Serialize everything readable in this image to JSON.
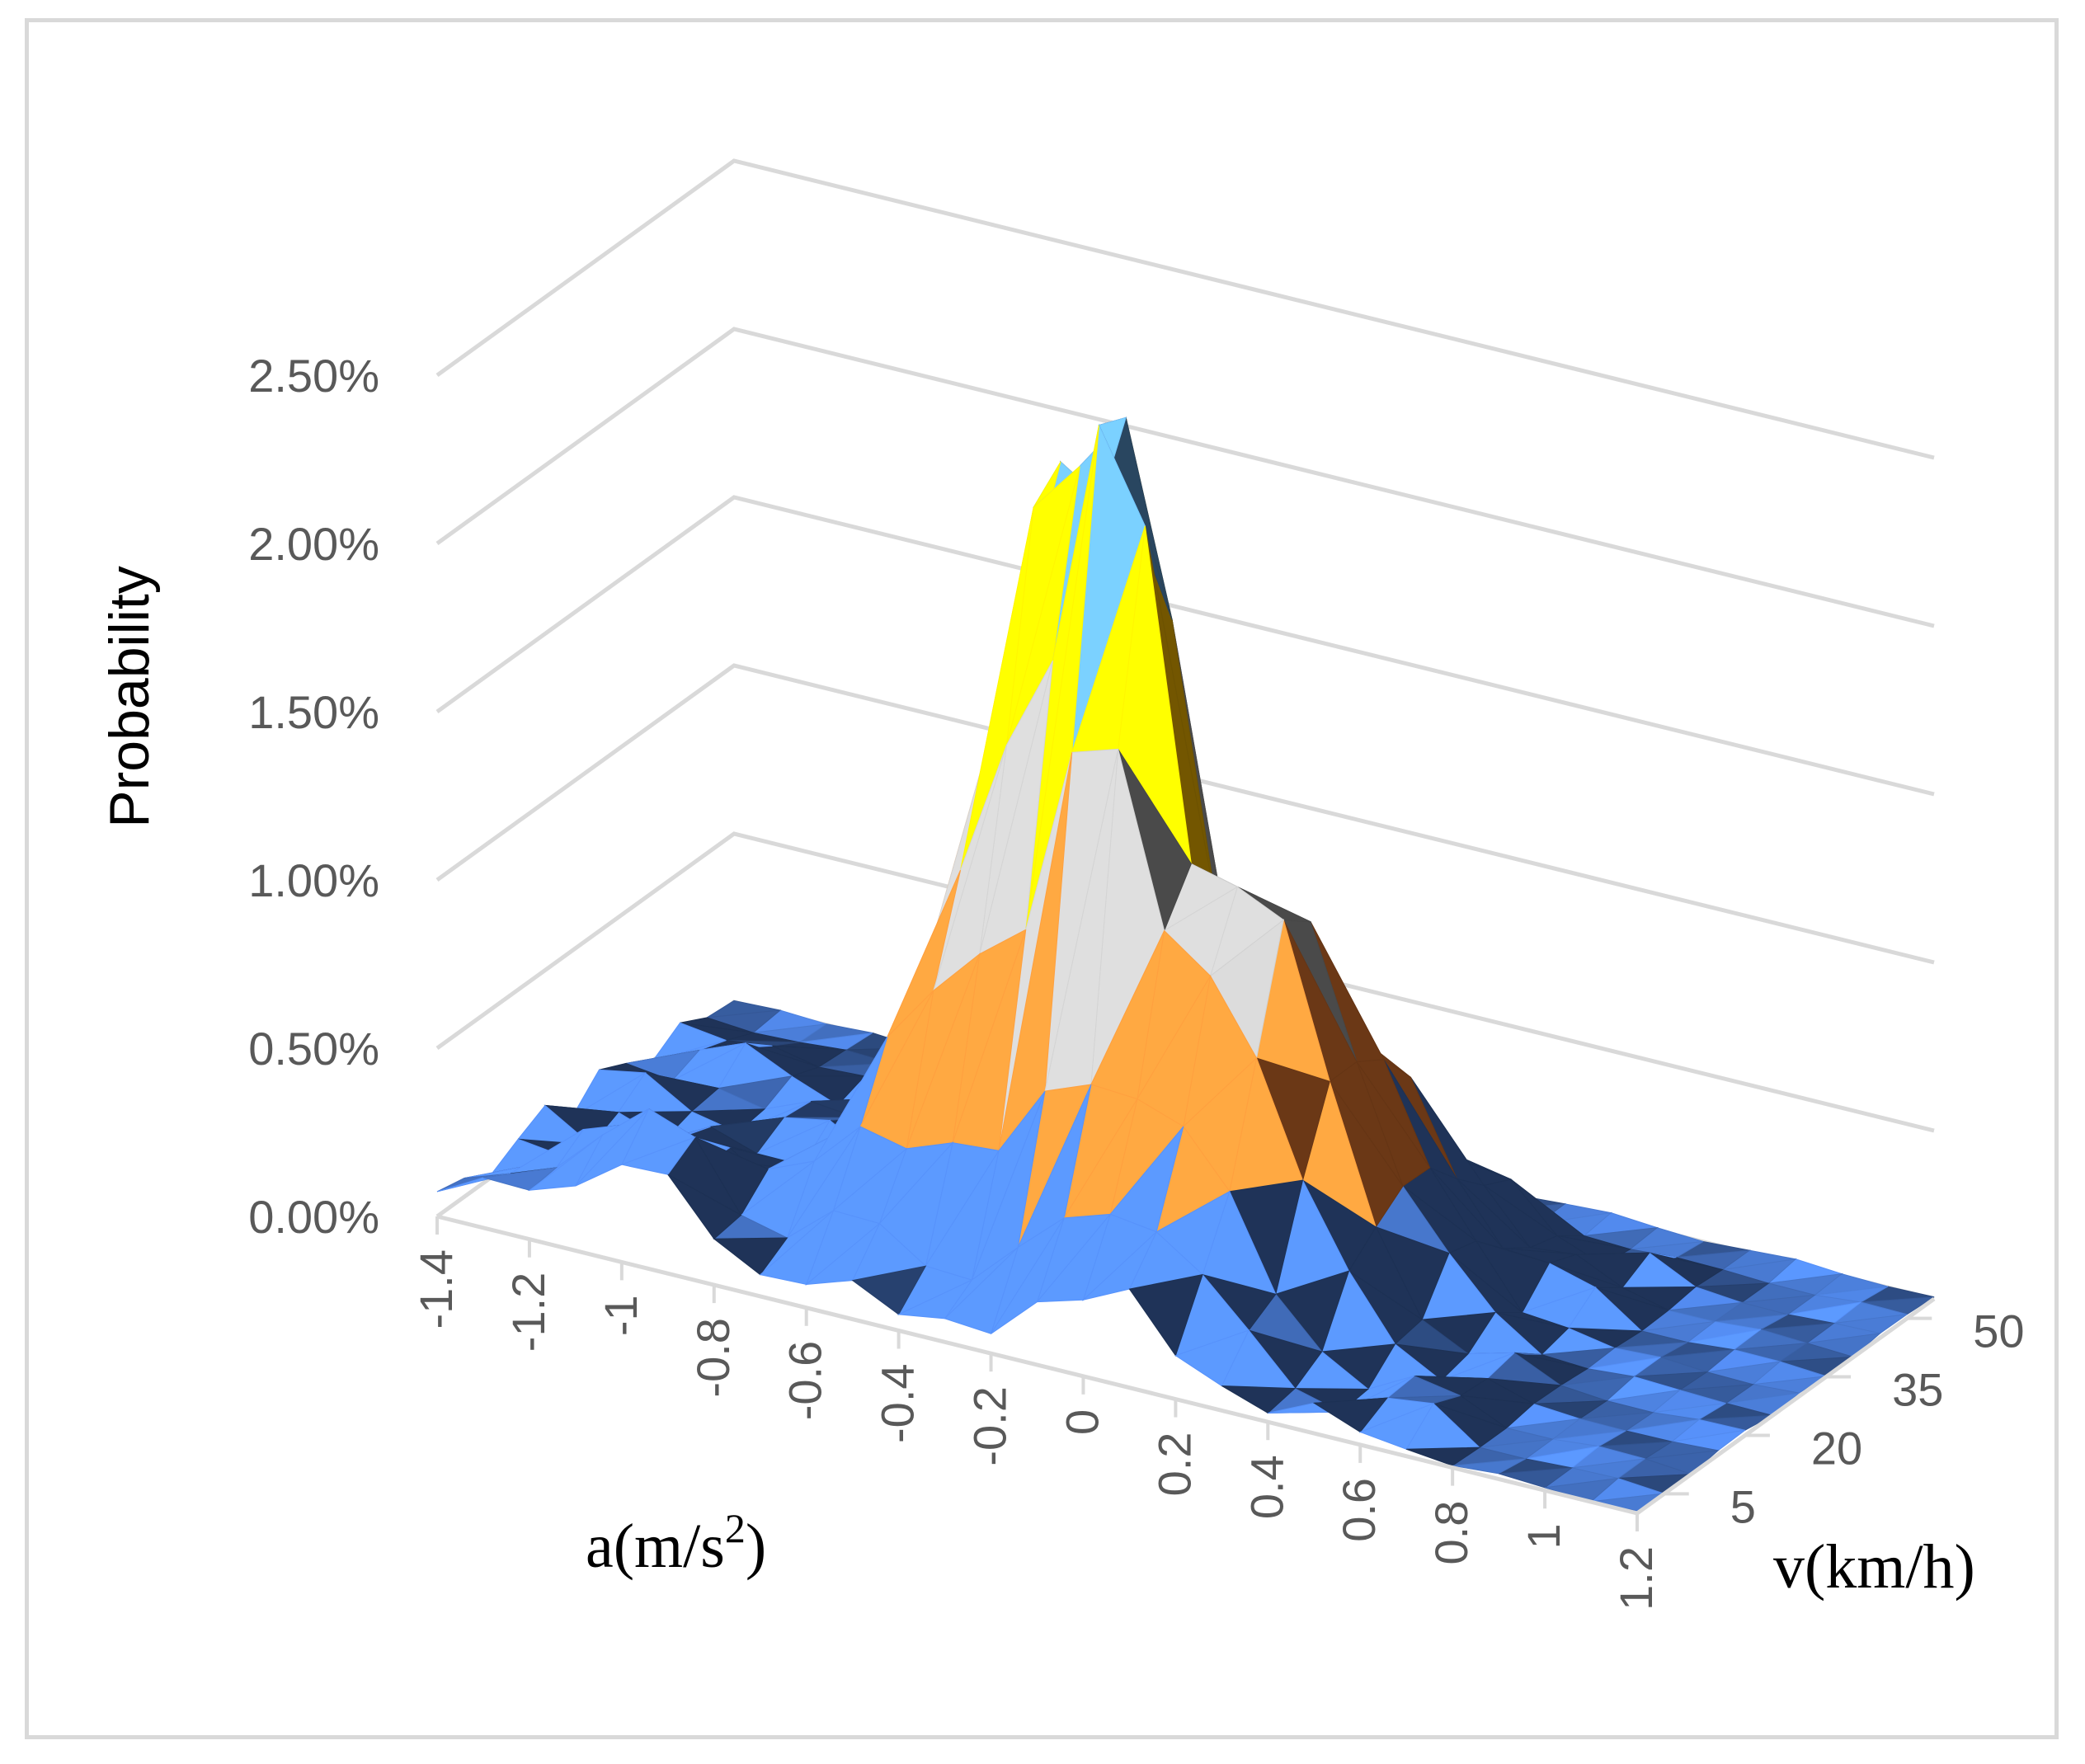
{
  "chart_data": {
    "type": "3d-surface",
    "title": "",
    "zlabel": "Probability",
    "xlabel_main": "a(m/s",
    "xlabel_sup": "2",
    "xlabel_end": ")",
    "ylabel": "v(km/h)",
    "z_ticks": [
      "0.00%",
      "0.50%",
      "1.00%",
      "1.50%",
      "2.00%",
      "2.50%"
    ],
    "zlim": [
      0,
      0.025
    ],
    "a_ticks": [
      "-1.4",
      "-1.2",
      "-1",
      "-0.8",
      "-0.6",
      "-0.4",
      "-0.2",
      "0",
      "0.2",
      "0.4",
      "0.6",
      "0.8",
      "1",
      "1.2"
    ],
    "v_ticks": [
      "5",
      "20",
      "35",
      "50"
    ],
    "band_colors": [
      "#4472c4",
      "#ed7d31",
      "#a5a5a5",
      "#ffc000",
      "#5b9bd5"
    ],
    "band_step": 0.005,
    "peaks": [
      {
        "a": -0.15,
        "v": 20,
        "value": 0.0205
      },
      {
        "a": -0.35,
        "v": 25,
        "value": 0.011
      },
      {
        "a": -0.25,
        "v": 30,
        "value": 0.0095
      },
      {
        "a": -0.45,
        "v": 30,
        "value": 0.009
      },
      {
        "a": 0.15,
        "v": 20,
        "value": 0.0081
      },
      {
        "a": 0.25,
        "v": 30,
        "value": 0.0058
      },
      {
        "a": -0.6,
        "v": 15,
        "value": 0.0049
      },
      {
        "a": 0.05,
        "v": 10,
        "value": 0.0045
      },
      {
        "a": -1.0,
        "v": 5,
        "value": 0.0033
      }
    ]
  }
}
